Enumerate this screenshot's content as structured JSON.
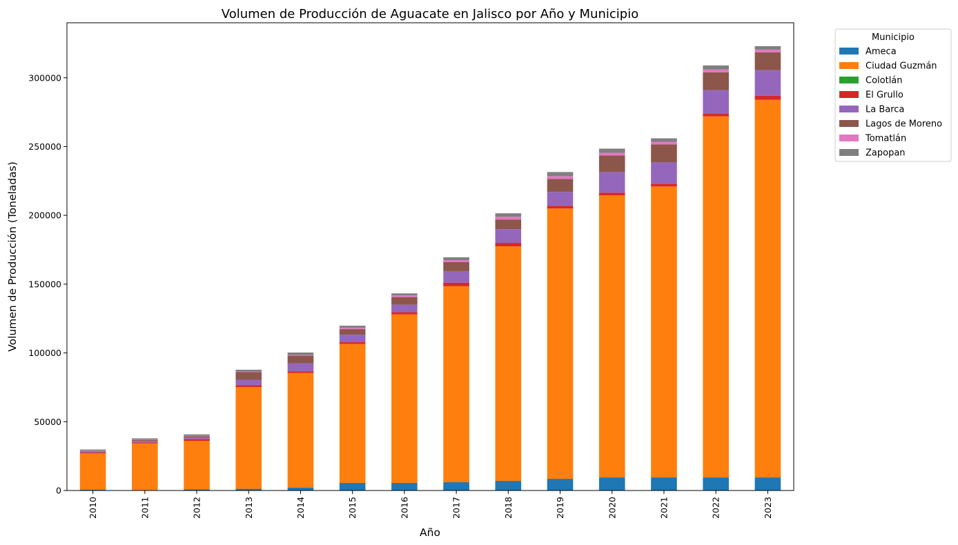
{
  "chart_data": {
    "type": "bar",
    "stacked": true,
    "title": "Volumen de Producción de Aguacate en Jalisco por Año y Municipio",
    "xlabel": "Año",
    "ylabel": "Volumen de Producción (Toneladas)",
    "ylim": [
      0,
      340000
    ],
    "yticks": [
      0,
      50000,
      100000,
      150000,
      200000,
      250000,
      300000
    ],
    "grid": false,
    "legend_title": "Municipio",
    "legend_position": "outside-top-right",
    "categories": [
      "2010",
      "2011",
      "2012",
      "2013",
      "2014",
      "2015",
      "2016",
      "2017",
      "2018",
      "2019",
      "2020",
      "2021",
      "2022",
      "2023"
    ],
    "series": [
      {
        "name": "Ameca",
        "color": "#1f77b4",
        "values": [
          500,
          300,
          800,
          1200,
          2000,
          5500,
          5500,
          6000,
          7000,
          8500,
          9500,
          9500,
          9500,
          9500
        ]
      },
      {
        "name": "Ciudad Guzmán",
        "color": "#ff7f0e",
        "values": [
          26500,
          34000,
          35300,
          74000,
          83500,
          101000,
          122500,
          142500,
          170500,
          196500,
          205000,
          211500,
          262500,
          274500
        ]
      },
      {
        "name": "Colotlán",
        "color": "#2ca02c",
        "values": [
          0,
          0,
          0,
          0,
          0,
          0,
          0,
          0,
          0,
          0,
          0,
          0,
          0,
          0
        ]
      },
      {
        "name": "El Grullo",
        "color": "#d62728",
        "values": [
          700,
          700,
          1200,
          1300,
          1000,
          1300,
          1600,
          2500,
          2500,
          2000,
          2000,
          2000,
          2000,
          3000
        ]
      },
      {
        "name": "La Barca",
        "color": "#9467bd",
        "values": [
          500,
          1000,
          1200,
          4000,
          6000,
          5500,
          5500,
          8500,
          10000,
          10000,
          15000,
          15500,
          17000,
          18500
        ]
      },
      {
        "name": "Lagos de Moreno",
        "color": "#8c564b",
        "values": [
          500,
          700,
          1000,
          5500,
          5500,
          4000,
          5500,
          6500,
          7000,
          9500,
          12000,
          13000,
          13000,
          13000
        ]
      },
      {
        "name": "Tomatlán",
        "color": "#e377c2",
        "values": [
          200,
          200,
          300,
          500,
          500,
          1000,
          1200,
          1500,
          2000,
          2000,
          2000,
          2000,
          2000,
          2000
        ]
      },
      {
        "name": "Zapopan",
        "color": "#7f7f7f",
        "values": [
          900,
          1000,
          1000,
          1300,
          1800,
          1500,
          1500,
          2000,
          2500,
          3000,
          3000,
          2500,
          3000,
          2500
        ]
      }
    ]
  }
}
